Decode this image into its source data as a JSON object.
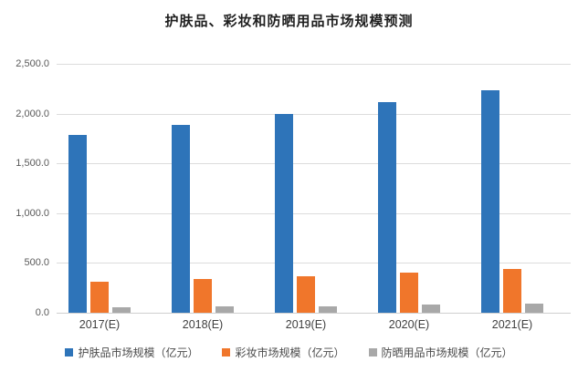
{
  "title": "护肤品、彩妆和防晒用品市场规模预测",
  "chart_data": {
    "type": "bar",
    "title": "护肤品、彩妆和防晒用品市场规模预测",
    "categories": [
      "2017(E)",
      "2018(E)",
      "2019(E)",
      "2020(E)",
      "2021(E)"
    ],
    "series": [
      {
        "name": "护肤品市场规模（亿元）",
        "color": "#2e74b9",
        "values": [
          1790,
          1890,
          2000,
          2115,
          2235
        ]
      },
      {
        "name": "彩妆市场规模（亿元）",
        "color": "#f0762b",
        "values": [
          315,
          335,
          370,
          400,
          440
        ]
      },
      {
        "name": "防晒用品市场规模（亿元）",
        "color": "#a8a8a8",
        "values": [
          55,
          62,
          68,
          80,
          95
        ]
      }
    ],
    "ylim": [
      0,
      2500
    ],
    "ytick_interval": 500,
    "ytick_labels": [
      "0.0",
      "500.0",
      "1,000.0",
      "1,500.0",
      "2,000.0",
      "2,500.0"
    ],
    "xlabel": "",
    "ylabel": "",
    "grid": true,
    "legend_position": "bottom",
    "colors": {
      "gridline": "#dcdcdc",
      "tick_text": "#595959",
      "axis_text": "#404040",
      "background": "#ffffff"
    }
  }
}
